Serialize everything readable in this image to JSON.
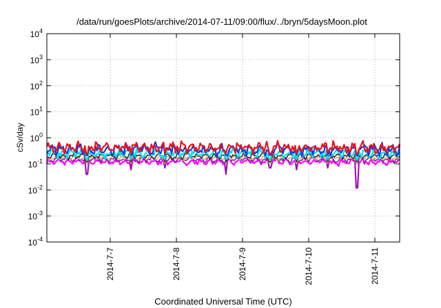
{
  "chart_data": {
    "type": "line",
    "title": "/data/run/goesPlots/archive/2014-07-11/09:00/flux/../bryn/5daysMoon.plot",
    "xlabel": "Coordinated Universal Time (UTC)",
    "ylabel": "cSv/day",
    "yscale": "log",
    "ylim": [
      0.0001,
      10000
    ],
    "xlim": [
      "2014-07-06 01:00",
      "2014-07-11 09:00"
    ],
    "grid": true,
    "legend": "none",
    "y_ticks": [
      {
        "base": "10",
        "exp": "-4"
      },
      {
        "base": "10",
        "exp": "-3"
      },
      {
        "base": "10",
        "exp": "-2"
      },
      {
        "base": "10",
        "exp": "-1"
      },
      {
        "base": "10",
        "exp": "0"
      },
      {
        "base": "10",
        "exp": "1"
      },
      {
        "base": "10",
        "exp": "2"
      },
      {
        "base": "10",
        "exp": "3"
      },
      {
        "base": "10",
        "exp": "4"
      }
    ],
    "x_ticks": [
      "2014-7-7",
      "2014-7-8",
      "2014-7-9",
      "2014-7-10",
      "2014-7-11"
    ],
    "series": [
      {
        "color": "#e8141c",
        "level": 0.42,
        "spread": 0.22
      },
      {
        "color": "#1a3adc",
        "level": 0.36,
        "spread": 0.25
      },
      {
        "color": "#00e0ee",
        "level": 0.25,
        "spread": 0.18
      },
      {
        "color": "#2e2e2e",
        "level": 0.2,
        "spread": 0.12
      },
      {
        "color": "#d0b070",
        "level": 0.17,
        "spread": 0.1
      },
      {
        "color": "#8a1aa0",
        "level": 0.145,
        "spread": 0.12
      },
      {
        "color": "#ff00ff",
        "level": 0.12,
        "spread": 0.13
      }
    ],
    "dips": [
      {
        "date": "2014-07-06 15:30",
        "value": 0.04
      },
      {
        "date": "2014-07-07 07:30",
        "value": 0.06
      },
      {
        "date": "2014-07-07 20:00",
        "value": 0.07
      },
      {
        "date": "2014-07-08 18:00",
        "value": 0.04
      },
      {
        "date": "2014-07-09 10:00",
        "value": 0.07
      },
      {
        "date": "2014-07-09 19:30",
        "value": 0.06
      },
      {
        "date": "2014-07-10 07:00",
        "value": 0.07
      },
      {
        "date": "2014-07-10 17:30",
        "value": 0.012
      }
    ]
  }
}
